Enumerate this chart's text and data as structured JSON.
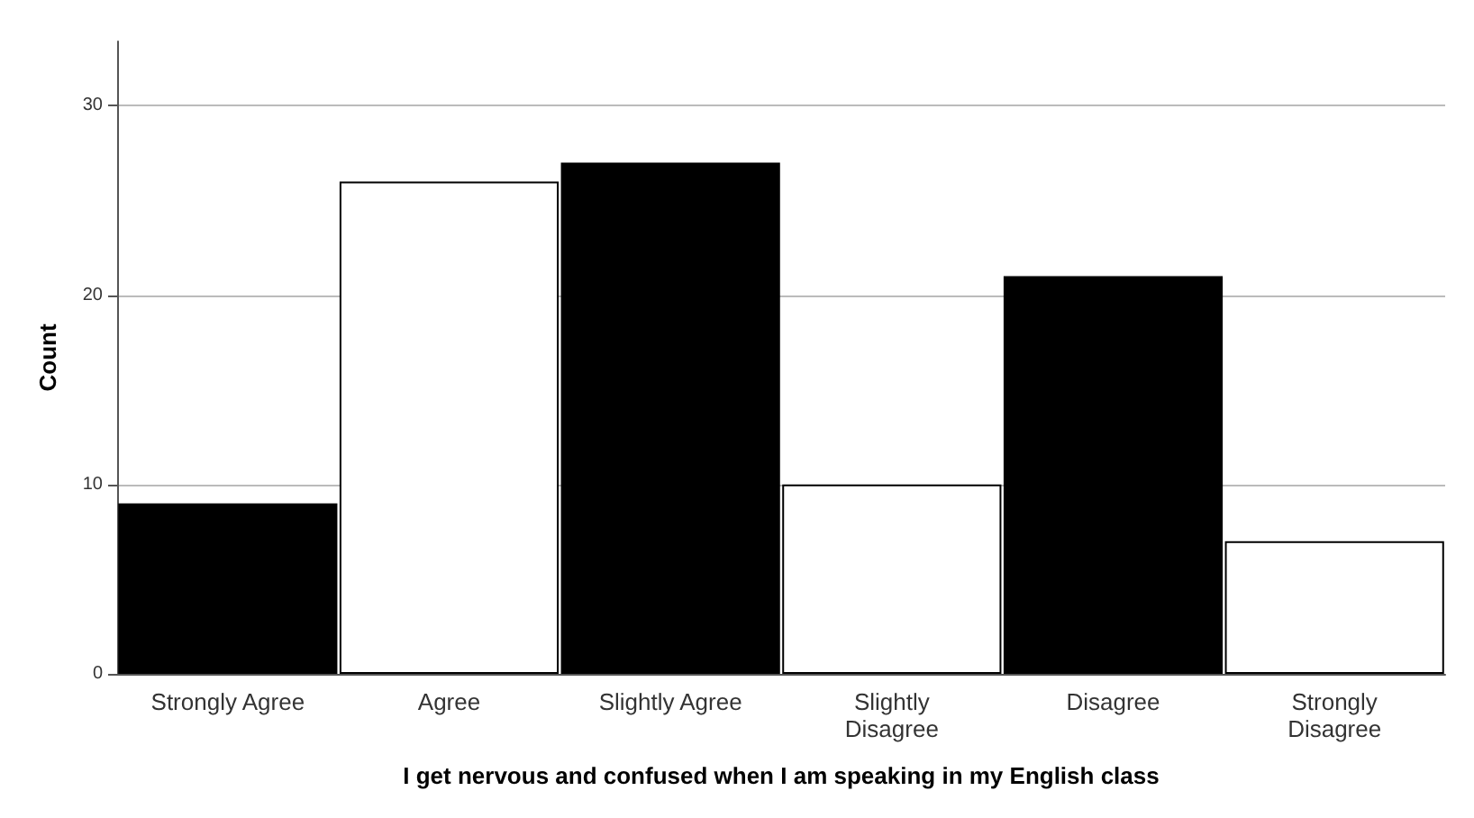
{
  "chart_data": {
    "type": "bar",
    "xlabel": "I get nervous and confused when I am speaking in my English class",
    "ylabel": "Count",
    "categories": [
      "Strongly Agree",
      "Agree",
      "Slightly Agree",
      "Slightly\nDisagree",
      "Disagree",
      "Strongly\nDisagree"
    ],
    "values": [
      9,
      26,
      27,
      10,
      21,
      7
    ],
    "colors": [
      "#000000",
      "#ffffff",
      "#000000",
      "#ffffff",
      "#000000",
      "#ffffff"
    ],
    "ylim": [
      0,
      33.4
    ],
    "yticks": [
      0,
      10,
      20,
      30
    ],
    "grid": "y"
  }
}
